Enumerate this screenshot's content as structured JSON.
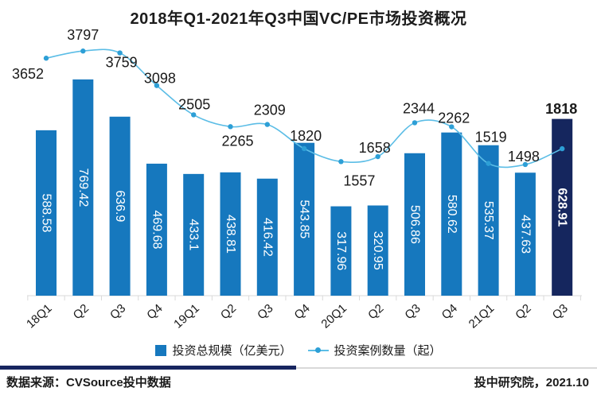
{
  "chart_data": {
    "type": "bar",
    "title": "2018年Q1-2021年Q3中国VC/PE市场投资概况",
    "categories": [
      "18Q1",
      "Q2",
      "Q3",
      "Q4",
      "19Q1",
      "Q2",
      "Q3",
      "Q4",
      "20Q1",
      "Q2",
      "Q3",
      "Q4",
      "21Q1",
      "Q2",
      "Q3"
    ],
    "series": [
      {
        "name": "投资总规模（亿美元）",
        "type": "bar",
        "values": [
          588.58,
          769.42,
          636.9,
          469.68,
          433.1,
          438.81,
          416.42,
          543.85,
          317.96,
          320.95,
          506.86,
          580.62,
          535.37,
          437.63,
          628.91
        ],
        "labels": [
          "588.58",
          "769.42",
          "636.9",
          "469.68",
          "433.1",
          "438.81",
          "416.42",
          "543.85",
          "317.96",
          "320.95",
          "506.86",
          "580.62",
          "535.37",
          "437.63",
          "628.91"
        ],
        "color": "#1678be",
        "highlight_index": 14,
        "highlight_color": "#15265e"
      },
      {
        "name": "投资案例数量（起）",
        "type": "line",
        "values": [
          3652,
          3797,
          3759,
          3098,
          2505,
          2265,
          2309,
          1820,
          1557,
          1658,
          2344,
          2262,
          1519,
          1498,
          1818
        ],
        "labels": [
          "3652",
          "3797",
          "3759",
          "3098",
          "2505",
          "2265",
          "2309",
          "1820",
          "1557",
          "1658",
          "2344",
          "2262",
          "1519",
          "1498",
          "1818"
        ],
        "color": "#5bbde6",
        "marker_color": "#2d9fd6",
        "highlight_index": 14
      }
    ],
    "legend_position": "bottom",
    "grid": false,
    "axes": {
      "x_labels_rotated": true,
      "y_axis_visible": false
    }
  },
  "footer": {
    "source": "数据来源：CVSource投中数据",
    "credit": "投中研究院，2021.10"
  },
  "colors": {
    "background": "#ffffff",
    "axis": "#d9d9d9",
    "bar_value_text": "#ffffff",
    "label_text": "#1a1a1a",
    "divider_left": "#17255f",
    "divider_right": "#d9d9d9"
  }
}
